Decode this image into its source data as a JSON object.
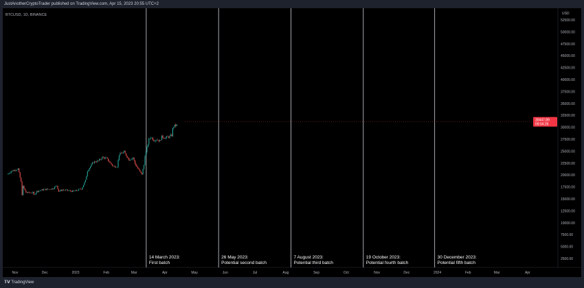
{
  "header": {
    "published": "JustAnotherCryptoTrader published on TradingView.com, Apr 15, 2023 20:55 UTC+2"
  },
  "symbol": "BTCUSD, 1D, BINANCE",
  "footer": {
    "logo_text": "TradingView"
  },
  "colors": {
    "up": "#26a69a",
    "down": "#ef5350",
    "price_tag": "#f23645",
    "background": "#000000",
    "frame": "#1e222d"
  },
  "price_tag": {
    "price": "30447.89",
    "countdown": "09:04:26"
  },
  "chart_data": {
    "type": "candlestick",
    "currency": "USD",
    "ylim": [
      0,
      55000
    ],
    "y_ticks": [
      "52500.00",
      "50000.00",
      "47500.00",
      "45000.00",
      "42500.00",
      "40000.00",
      "37500.00",
      "35000.00",
      "32500.00",
      "30000.00",
      "27500.00",
      "25000.00",
      "22500.00",
      "20000.00",
      "17500.00",
      "15000.00",
      "12500.00",
      "10000.00",
      "7500.00",
      "5000.00",
      "2500.00"
    ],
    "x_ticks": [
      {
        "label": "Nov",
        "date": "2022-11-01"
      },
      {
        "label": "Dec",
        "date": "2022-12-01"
      },
      {
        "label": "2023",
        "date": "2023-01-01"
      },
      {
        "label": "Feb",
        "date": "2023-02-01"
      },
      {
        "label": "Mar",
        "date": "2023-03-01"
      },
      {
        "label": "Apr",
        "date": "2023-04-01"
      },
      {
        "label": "May",
        "date": "2023-05-01"
      },
      {
        "label": "Jun",
        "date": "2023-06-01"
      },
      {
        "label": "Jul",
        "date": "2023-07-01"
      },
      {
        "label": "Aug",
        "date": "2023-08-01"
      },
      {
        "label": "Sep",
        "date": "2023-09-01"
      },
      {
        "label": "Oct",
        "date": "2023-10-01"
      },
      {
        "label": "Nov",
        "date": "2023-11-01"
      },
      {
        "label": "Dec",
        "date": "2023-12-01"
      },
      {
        "label": "2024",
        "date": "2024-01-01"
      },
      {
        "label": "Feb",
        "date": "2024-02-01"
      },
      {
        "label": "Mar",
        "date": "2024-03-01"
      },
      {
        "label": "Apr",
        "date": "2024-04-01"
      }
    ],
    "close_points": [
      [
        "2022-10-25",
        20100
      ],
      [
        "2022-10-29",
        20800
      ],
      [
        "2022-11-05",
        21300
      ],
      [
        "2022-11-08",
        18500
      ],
      [
        "2022-11-09",
        15900
      ],
      [
        "2022-11-10",
        17600
      ],
      [
        "2022-11-13",
        16300
      ],
      [
        "2022-11-20",
        16300
      ],
      [
        "2022-11-21",
        15800
      ],
      [
        "2022-11-24",
        16600
      ],
      [
        "2022-12-01",
        16950
      ],
      [
        "2022-12-05",
        17000
      ],
      [
        "2022-12-10",
        17150
      ],
      [
        "2022-12-14",
        17800
      ],
      [
        "2022-12-16",
        16600
      ],
      [
        "2022-12-20",
        16900
      ],
      [
        "2022-12-31",
        16550
      ],
      [
        "2023-01-08",
        17100
      ],
      [
        "2023-01-12",
        18850
      ],
      [
        "2023-01-14",
        20900
      ],
      [
        "2023-01-20",
        22700
      ],
      [
        "2023-01-25",
        22950
      ],
      [
        "2023-01-29",
        23700
      ],
      [
        "2023-02-02",
        23500
      ],
      [
        "2023-02-09",
        21800
      ],
      [
        "2023-02-13",
        21800
      ],
      [
        "2023-02-15",
        24300
      ],
      [
        "2023-02-20",
        24800
      ],
      [
        "2023-02-25",
        23200
      ],
      [
        "2023-03-01",
        23650
      ],
      [
        "2023-03-03",
        22350
      ],
      [
        "2023-03-09",
        20300
      ],
      [
        "2023-03-10",
        20200
      ],
      [
        "2023-03-12",
        22100
      ],
      [
        "2023-03-13",
        24200
      ],
      [
        "2023-03-14",
        24700
      ],
      [
        "2023-03-17",
        27400
      ],
      [
        "2023-03-19",
        28000
      ],
      [
        "2023-03-22",
        27300
      ],
      [
        "2023-03-25",
        27500
      ],
      [
        "2023-03-28",
        27100
      ],
      [
        "2023-03-30",
        28000
      ],
      [
        "2023-04-03",
        27800
      ],
      [
        "2023-04-06",
        28000
      ],
      [
        "2023-04-09",
        28300
      ],
      [
        "2023-04-10",
        29650
      ],
      [
        "2023-04-11",
        30200
      ],
      [
        "2023-04-14",
        30450
      ]
    ],
    "annotations": [
      {
        "date": "2023-03-14",
        "line1": "14 March 2023:",
        "line2": "First batch"
      },
      {
        "date": "2023-05-26",
        "line1": "26 May 2023:",
        "line2": "Potential second batch"
      },
      {
        "date": "2023-08-07",
        "line1": "7 August 2023:",
        "line2": "Potential third batch"
      },
      {
        "date": "2023-10-19",
        "line1": "19 October 2023:",
        "line2": "Potential fourth batch"
      },
      {
        "date": "2023-12-30",
        "line1": "30 December 2023:",
        "line2": "Potential fifth batch"
      }
    ]
  }
}
